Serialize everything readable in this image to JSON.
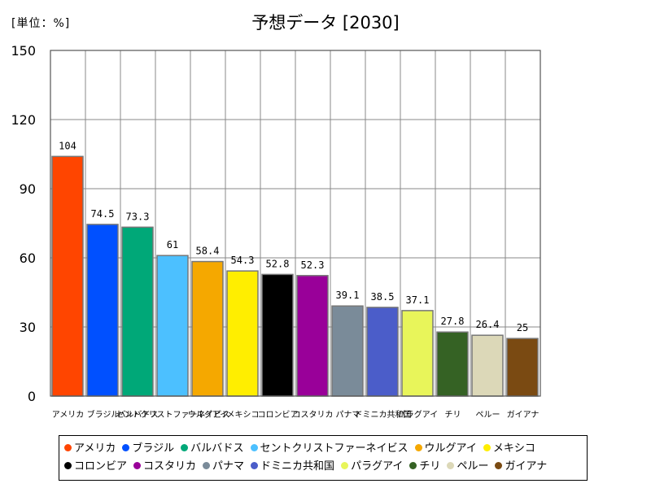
{
  "unit_label": "[単位：%]",
  "chart_data": {
    "type": "bar",
    "title": "予想データ [2030]",
    "xlabel": "",
    "ylabel": "",
    "ylim": [
      0,
      150
    ],
    "yticks": [
      0,
      30,
      60,
      90,
      120,
      150
    ],
    "grid": true,
    "legend_position": "bottom",
    "categories": [
      "アメリカ",
      "ブラジル",
      "バルバドス",
      "セントクリストファーネイビス",
      "ウルグアイ",
      "メキシコ",
      "コロンビア",
      "コスタリカ",
      "パナマ",
      "ドミニカ共和国",
      "パラグアイ",
      "チリ",
      "ペルー",
      "ガイアナ"
    ],
    "values": [
      104,
      74.5,
      73.3,
      61,
      58.4,
      54.3,
      52.8,
      52.3,
      39.1,
      38.5,
      37.1,
      27.8,
      26.4,
      25
    ],
    "data_labels": [
      "104",
      "74.5",
      "73.3",
      "61",
      "58.4",
      "54.3",
      "52.8",
      "52.3",
      "39.1",
      "38.5",
      "37.1",
      "27.8",
      "26.4",
      "25"
    ],
    "colors": [
      "#ff4500",
      "#0050ff",
      "#00a878",
      "#4cc0ff",
      "#f5a800",
      "#ffee00",
      "#000000",
      "#990099",
      "#7a8b99",
      "#4b5dc9",
      "#e8f55a",
      "#356224",
      "#dcd8b8",
      "#7a4a12"
    ]
  }
}
